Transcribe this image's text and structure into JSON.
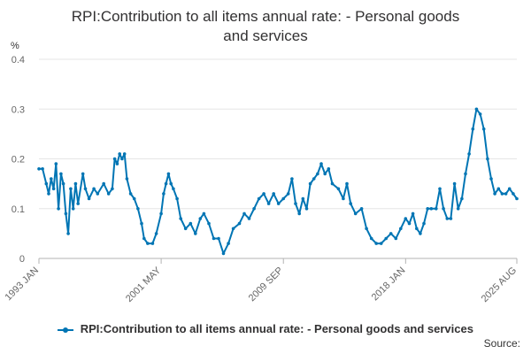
{
  "chart_data": {
    "type": "line",
    "title": "RPI:Contribution to all items annual rate: - Personal goods and services",
    "title_lines": [
      "RPI:Contribution to all items annual rate: - Personal goods",
      "and services"
    ],
    "unit_label": "%",
    "xlabel": "",
    "ylabel": "",
    "ylim": [
      0,
      0.4
    ],
    "yticks": [
      0,
      0.1,
      0.2,
      0.3,
      0.4
    ],
    "ytick_labels": [
      "0",
      "0.1",
      "0.2",
      "0.3",
      "0.4"
    ],
    "xlim": [
      "1993-01",
      "2025-08"
    ],
    "xticks": [
      {
        "date": "1993-01",
        "label": "1993 JAN"
      },
      {
        "date": "2001-05",
        "label": "2001 MAY"
      },
      {
        "date": "2009-09",
        "label": "2009 SEP"
      },
      {
        "date": "2018-01",
        "label": "2018 JAN"
      },
      {
        "date": "2025-08",
        "label": "2025 AUG"
      }
    ],
    "grid": "horizontal",
    "legend_position": "bottom",
    "color": "#0075b4",
    "series": [
      {
        "name": "RPI:Contribution to all items annual rate: - Personal goods and services",
        "points": [
          [
            "1993-01",
            0.18
          ],
          [
            "1993-04",
            0.18
          ],
          [
            "1993-07",
            0.15
          ],
          [
            "1993-09",
            0.13
          ],
          [
            "1993-11",
            0.16
          ],
          [
            "1994-01",
            0.14
          ],
          [
            "1994-03",
            0.19
          ],
          [
            "1994-05",
            0.1
          ],
          [
            "1994-07",
            0.17
          ],
          [
            "1994-09",
            0.15
          ],
          [
            "1994-11",
            0.09
          ],
          [
            "1995-01",
            0.05
          ],
          [
            "1995-03",
            0.14
          ],
          [
            "1995-05",
            0.1
          ],
          [
            "1995-07",
            0.15
          ],
          [
            "1995-09",
            0.11
          ],
          [
            "1996-01",
            0.17
          ],
          [
            "1996-03",
            0.14
          ],
          [
            "1996-06",
            0.12
          ],
          [
            "1996-10",
            0.14
          ],
          [
            "1997-01",
            0.13
          ],
          [
            "1997-06",
            0.15
          ],
          [
            "1997-10",
            0.13
          ],
          [
            "1998-01",
            0.14
          ],
          [
            "1998-03",
            0.2
          ],
          [
            "1998-05",
            0.19
          ],
          [
            "1998-07",
            0.21
          ],
          [
            "1998-09",
            0.2
          ],
          [
            "1998-11",
            0.21
          ],
          [
            "1999-01",
            0.16
          ],
          [
            "1999-04",
            0.13
          ],
          [
            "1999-07",
            0.12
          ],
          [
            "1999-10",
            0.1
          ],
          [
            "2000-01",
            0.07
          ],
          [
            "2000-03",
            0.04
          ],
          [
            "2000-06",
            0.03
          ],
          [
            "2000-10",
            0.03
          ],
          [
            "2001-01",
            0.05
          ],
          [
            "2001-05",
            0.09
          ],
          [
            "2001-07",
            0.13
          ],
          [
            "2001-09",
            0.15
          ],
          [
            "2001-11",
            0.17
          ],
          [
            "2002-01",
            0.15
          ],
          [
            "2002-03",
            0.14
          ],
          [
            "2002-06",
            0.12
          ],
          [
            "2002-09",
            0.08
          ],
          [
            "2003-01",
            0.06
          ],
          [
            "2003-05",
            0.07
          ],
          [
            "2003-09",
            0.05
          ],
          [
            "2004-01",
            0.08
          ],
          [
            "2004-04",
            0.09
          ],
          [
            "2004-08",
            0.07
          ],
          [
            "2004-12",
            0.04
          ],
          [
            "2005-04",
            0.04
          ],
          [
            "2005-08",
            0.01
          ],
          [
            "2005-12",
            0.03
          ],
          [
            "2006-04",
            0.06
          ],
          [
            "2006-09",
            0.07
          ],
          [
            "2007-01",
            0.09
          ],
          [
            "2007-05",
            0.08
          ],
          [
            "2007-09",
            0.1
          ],
          [
            "2008-01",
            0.12
          ],
          [
            "2008-05",
            0.13
          ],
          [
            "2008-09",
            0.11
          ],
          [
            "2009-01",
            0.13
          ],
          [
            "2009-05",
            0.11
          ],
          [
            "2009-09",
            0.12
          ],
          [
            "2010-01",
            0.13
          ],
          [
            "2010-04",
            0.16
          ],
          [
            "2010-07",
            0.11
          ],
          [
            "2010-10",
            0.09
          ],
          [
            "2011-01",
            0.12
          ],
          [
            "2011-04",
            0.1
          ],
          [
            "2011-07",
            0.15
          ],
          [
            "2011-10",
            0.16
          ],
          [
            "2012-01",
            0.17
          ],
          [
            "2012-04",
            0.19
          ],
          [
            "2012-07",
            0.17
          ],
          [
            "2012-10",
            0.18
          ],
          [
            "2013-01",
            0.15
          ],
          [
            "2013-06",
            0.14
          ],
          [
            "2013-10",
            0.12
          ],
          [
            "2014-01",
            0.15
          ],
          [
            "2014-04",
            0.11
          ],
          [
            "2014-08",
            0.09
          ],
          [
            "2015-01",
            0.1
          ],
          [
            "2015-05",
            0.06
          ],
          [
            "2015-09",
            0.04
          ],
          [
            "2016-01",
            0.03
          ],
          [
            "2016-05",
            0.03
          ],
          [
            "2016-09",
            0.04
          ],
          [
            "2017-01",
            0.05
          ],
          [
            "2017-05",
            0.04
          ],
          [
            "2017-09",
            0.06
          ],
          [
            "2018-01",
            0.08
          ],
          [
            "2018-04",
            0.07
          ],
          [
            "2018-07",
            0.09
          ],
          [
            "2018-10",
            0.06
          ],
          [
            "2019-01",
            0.05
          ],
          [
            "2019-04",
            0.07
          ],
          [
            "2019-07",
            0.1
          ],
          [
            "2019-10",
            0.1
          ],
          [
            "2020-02",
            0.1
          ],
          [
            "2020-05",
            0.14
          ],
          [
            "2020-08",
            0.1
          ],
          [
            "2020-11",
            0.08
          ],
          [
            "2021-02",
            0.08
          ],
          [
            "2021-05",
            0.15
          ],
          [
            "2021-08",
            0.1
          ],
          [
            "2021-11",
            0.12
          ],
          [
            "2022-02",
            0.17
          ],
          [
            "2022-05",
            0.21
          ],
          [
            "2022-08",
            0.26
          ],
          [
            "2022-11",
            0.3
          ],
          [
            "2023-02",
            0.29
          ],
          [
            "2023-05",
            0.26
          ],
          [
            "2023-08",
            0.2
          ],
          [
            "2023-11",
            0.16
          ],
          [
            "2024-02",
            0.13
          ],
          [
            "2024-05",
            0.14
          ],
          [
            "2024-08",
            0.13
          ],
          [
            "2024-11",
            0.13
          ],
          [
            "2025-02",
            0.14
          ],
          [
            "2025-05",
            0.13
          ],
          [
            "2025-08",
            0.12
          ]
        ]
      }
    ]
  },
  "source_label": "Source:"
}
